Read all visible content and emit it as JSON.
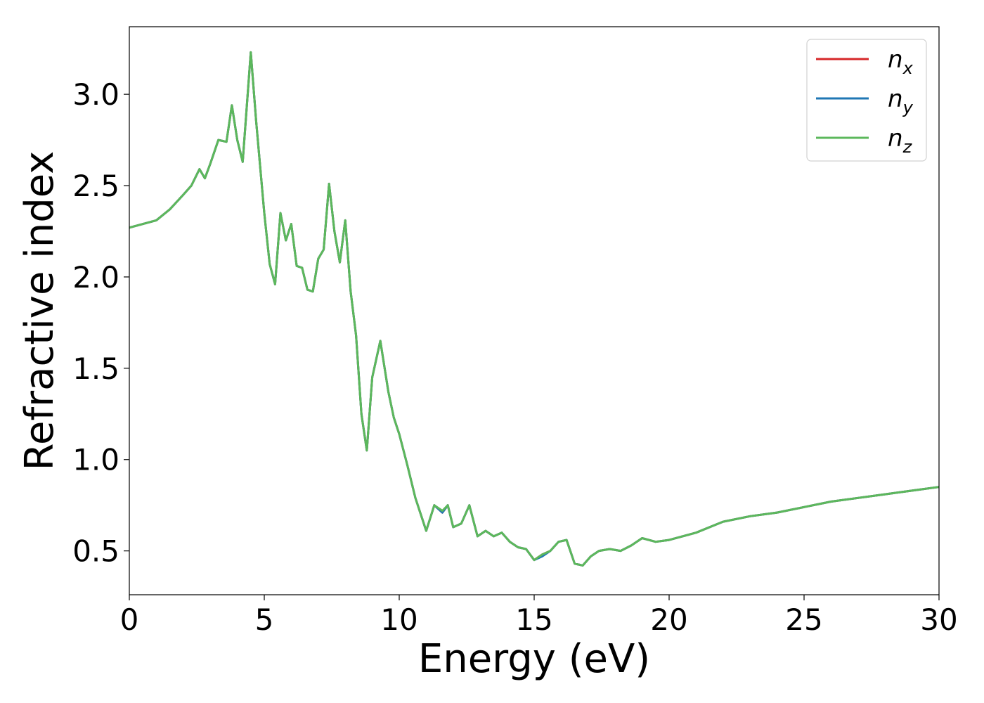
{
  "chart_data": {
    "type": "line",
    "xlabel": "Energy (eV)",
    "ylabel": "Refractive index",
    "xlim": [
      0,
      30
    ],
    "ylim": [
      0.26,
      3.37
    ],
    "xticks": [
      "0",
      "5",
      "10",
      "15",
      "20",
      "25",
      "30"
    ],
    "yticks": [
      "0.5",
      "1.0",
      "1.5",
      "2.0",
      "2.5",
      "3.0"
    ],
    "grid": false,
    "legend_position": "top-right",
    "series": [
      {
        "name": "n_x",
        "label_base": "n",
        "label_sub": "x",
        "color": "#d62728",
        "x": [
          0,
          1,
          1.5,
          2,
          2.3,
          2.6,
          2.8,
          3.0,
          3.3,
          3.6,
          3.8,
          4.0,
          4.2,
          4.5,
          4.7,
          5.0,
          5.2,
          5.4,
          5.6,
          5.8,
          6.0,
          6.2,
          6.4,
          6.6,
          6.8,
          7.0,
          7.2,
          7.4,
          7.6,
          7.8,
          8.0,
          8.2,
          8.4,
          8.6,
          8.8,
          9.0,
          9.3,
          9.6,
          9.8,
          10.0,
          10.3,
          10.6,
          11.0,
          11.3,
          11.6,
          11.8,
          12.0,
          12.3,
          12.6,
          12.9,
          13.2,
          13.5,
          13.8,
          14.1,
          14.4,
          14.7,
          15.0,
          15.3,
          15.6,
          15.9,
          16.2,
          16.5,
          16.8,
          17.1,
          17.4,
          17.8,
          18.2,
          18.6,
          19.0,
          19.5,
          20,
          21,
          22,
          23,
          24,
          25,
          26,
          27,
          28,
          29,
          30
        ],
        "values": [
          2.27,
          2.31,
          2.37,
          2.45,
          2.5,
          2.59,
          2.54,
          2.62,
          2.75,
          2.74,
          2.94,
          2.75,
          2.63,
          3.23,
          2.85,
          2.35,
          2.07,
          1.96,
          2.35,
          2.2,
          2.29,
          2.06,
          2.05,
          1.93,
          1.92,
          2.1,
          2.15,
          2.51,
          2.25,
          2.08,
          2.31,
          1.92,
          1.68,
          1.25,
          1.05,
          1.45,
          1.65,
          1.37,
          1.23,
          1.14,
          0.97,
          0.79,
          0.61,
          0.75,
          0.71,
          0.75,
          0.63,
          0.65,
          0.75,
          0.58,
          0.61,
          0.58,
          0.6,
          0.55,
          0.52,
          0.51,
          0.45,
          0.48,
          0.5,
          0.55,
          0.56,
          0.43,
          0.42,
          0.47,
          0.5,
          0.51,
          0.5,
          0.53,
          0.57,
          0.55,
          0.56,
          0.6,
          0.66,
          0.69,
          0.71,
          0.74,
          0.77,
          0.79,
          0.81,
          0.83,
          0.85
        ]
      },
      {
        "name": "n_y",
        "label_base": "n",
        "label_sub": "y",
        "color": "#1f77b4",
        "x": [
          0,
          1,
          1.5,
          2,
          2.3,
          2.6,
          2.8,
          3.0,
          3.3,
          3.6,
          3.8,
          4.0,
          4.2,
          4.5,
          4.7,
          5.0,
          5.2,
          5.4,
          5.6,
          5.8,
          6.0,
          6.2,
          6.4,
          6.6,
          6.8,
          7.0,
          7.2,
          7.4,
          7.6,
          7.8,
          8.0,
          8.2,
          8.4,
          8.6,
          8.8,
          9.0,
          9.3,
          9.6,
          9.8,
          10.0,
          10.3,
          10.6,
          11.0,
          11.3,
          11.6,
          11.8,
          12.0,
          12.3,
          12.6,
          12.9,
          13.2,
          13.5,
          13.8,
          14.1,
          14.4,
          14.7,
          15.0,
          15.3,
          15.6,
          15.9,
          16.2,
          16.5,
          16.8,
          17.1,
          17.4,
          17.8,
          18.2,
          18.6,
          19.0,
          19.5,
          20,
          21,
          22,
          23,
          24,
          25,
          26,
          27,
          28,
          29,
          30
        ],
        "values": [
          2.27,
          2.31,
          2.37,
          2.45,
          2.5,
          2.59,
          2.54,
          2.62,
          2.75,
          2.74,
          2.94,
          2.75,
          2.63,
          3.23,
          2.85,
          2.35,
          2.07,
          1.96,
          2.35,
          2.2,
          2.29,
          2.06,
          2.05,
          1.93,
          1.92,
          2.1,
          2.15,
          2.51,
          2.25,
          2.08,
          2.31,
          1.92,
          1.68,
          1.25,
          1.05,
          1.45,
          1.65,
          1.37,
          1.23,
          1.14,
          0.97,
          0.79,
          0.61,
          0.75,
          0.71,
          0.75,
          0.63,
          0.65,
          0.75,
          0.58,
          0.61,
          0.58,
          0.6,
          0.55,
          0.52,
          0.51,
          0.45,
          0.47,
          0.5,
          0.55,
          0.56,
          0.43,
          0.42,
          0.47,
          0.5,
          0.51,
          0.5,
          0.53,
          0.57,
          0.55,
          0.56,
          0.6,
          0.66,
          0.69,
          0.71,
          0.74,
          0.77,
          0.79,
          0.81,
          0.83,
          0.85
        ]
      },
      {
        "name": "n_z",
        "label_base": "n",
        "label_sub": "z",
        "color": "#5cb85c",
        "x": [
          0,
          1,
          1.5,
          2,
          2.3,
          2.6,
          2.8,
          3.0,
          3.3,
          3.6,
          3.8,
          4.0,
          4.2,
          4.5,
          4.7,
          5.0,
          5.2,
          5.4,
          5.6,
          5.8,
          6.0,
          6.2,
          6.4,
          6.6,
          6.8,
          7.0,
          7.2,
          7.4,
          7.6,
          7.8,
          8.0,
          8.2,
          8.4,
          8.6,
          8.8,
          9.0,
          9.3,
          9.6,
          9.8,
          10.0,
          10.3,
          10.6,
          11.0,
          11.3,
          11.6,
          11.8,
          12.0,
          12.3,
          12.6,
          12.9,
          13.2,
          13.5,
          13.8,
          14.1,
          14.4,
          14.7,
          15.0,
          15.3,
          15.6,
          15.9,
          16.2,
          16.5,
          16.8,
          17.1,
          17.4,
          17.8,
          18.2,
          18.6,
          19.0,
          19.5,
          20,
          21,
          22,
          23,
          24,
          25,
          26,
          27,
          28,
          29,
          30
        ],
        "values": [
          2.27,
          2.31,
          2.37,
          2.45,
          2.5,
          2.59,
          2.54,
          2.62,
          2.75,
          2.74,
          2.94,
          2.75,
          2.63,
          3.23,
          2.85,
          2.35,
          2.07,
          1.96,
          2.35,
          2.2,
          2.29,
          2.06,
          2.05,
          1.93,
          1.92,
          2.1,
          2.15,
          2.51,
          2.25,
          2.08,
          2.31,
          1.92,
          1.68,
          1.25,
          1.05,
          1.45,
          1.65,
          1.37,
          1.23,
          1.14,
          0.97,
          0.79,
          0.61,
          0.75,
          0.72,
          0.75,
          0.63,
          0.65,
          0.75,
          0.58,
          0.61,
          0.58,
          0.6,
          0.55,
          0.52,
          0.51,
          0.45,
          0.48,
          0.5,
          0.55,
          0.56,
          0.43,
          0.42,
          0.47,
          0.5,
          0.51,
          0.5,
          0.53,
          0.57,
          0.55,
          0.56,
          0.6,
          0.66,
          0.69,
          0.71,
          0.74,
          0.77,
          0.79,
          0.81,
          0.83,
          0.85
        ]
      }
    ]
  }
}
